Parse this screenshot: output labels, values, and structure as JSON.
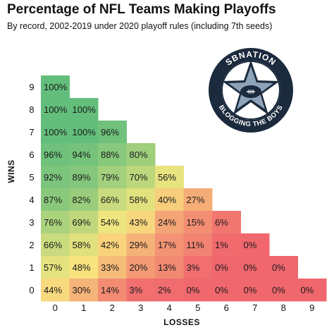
{
  "chart_data": {
    "type": "heatmap",
    "title": "Percentage of NFL Teams Making Playoffs",
    "subtitle": "By record, 2002-2019 under 2020 playoff rules (including 7th seeds)",
    "xlabel": "LOSSES",
    "ylabel": "WINS",
    "x_ticks": [
      "0",
      "1",
      "2",
      "3",
      "4",
      "5",
      "6",
      "7",
      "8",
      "9"
    ],
    "y_ticks": [
      "0",
      "1",
      "2",
      "3",
      "4",
      "5",
      "6",
      "7",
      "8",
      "9"
    ],
    "value_unit": "%",
    "rows": [
      {
        "wins": 9,
        "values": [
          100
        ]
      },
      {
        "wins": 8,
        "values": [
          100,
          100
        ]
      },
      {
        "wins": 7,
        "values": [
          100,
          100,
          96
        ]
      },
      {
        "wins": 6,
        "values": [
          96,
          94,
          88,
          80
        ]
      },
      {
        "wins": 5,
        "values": [
          92,
          89,
          79,
          70,
          56
        ]
      },
      {
        "wins": 4,
        "values": [
          87,
          82,
          66,
          58,
          40,
          27
        ]
      },
      {
        "wins": 3,
        "values": [
          76,
          69,
          54,
          43,
          24,
          15,
          6
        ]
      },
      {
        "wins": 2,
        "values": [
          66,
          58,
          42,
          29,
          17,
          11,
          1,
          0
        ]
      },
      {
        "wins": 1,
        "values": [
          57,
          48,
          33,
          20,
          13,
          3,
          0,
          0,
          0
        ]
      },
      {
        "wins": 0,
        "values": [
          44,
          30,
          14,
          3,
          2,
          0,
          0,
          0,
          0,
          0
        ]
      }
    ],
    "color_scale": {
      "low": "#f0676e",
      "mid": "#f9e87f",
      "high": "#63be7b"
    }
  },
  "logo": {
    "name": "sbnation-blogging-the-boys-logo",
    "top_text": "SBNATION",
    "bottom_text": "BLOGGING THE BOYS",
    "colors": {
      "ring": "#1b2a3d",
      "inner": "#ffffff",
      "star": "#8fa3b8"
    }
  }
}
